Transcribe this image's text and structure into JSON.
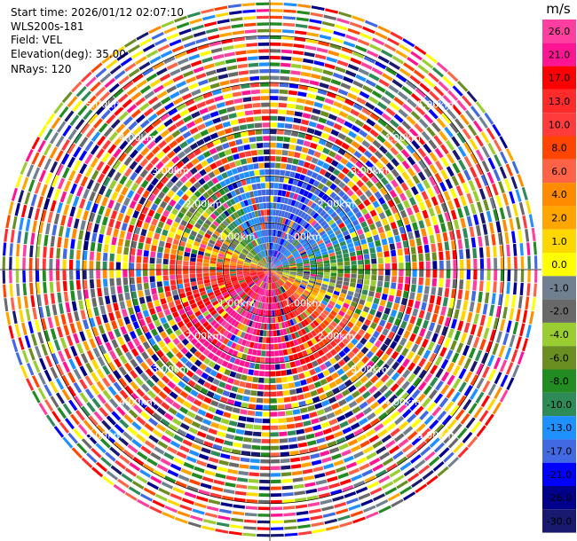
{
  "info": {
    "start_time": "Start time: 2026/01/12 02:07:10",
    "instrument": "WLS200s-181",
    "field": "Field: VEL",
    "elevation": "Elevation(deg): 35.00",
    "nrays": "NRays: 120"
  },
  "chart_data": {
    "type": "heatmap",
    "projection": "polar-ppi",
    "n_rays": 120,
    "range_rings_km": [
      1.0,
      2.0,
      3.0,
      4.0,
      5.0
    ],
    "ring_labels": [
      "1.00km",
      "2.00km",
      "3.00km",
      "4.00km",
      "5.00km"
    ],
    "colorbar": {
      "unit": "m/s",
      "tick_labels": [
        "26.0",
        "21.0",
        "17.0",
        "13.0",
        "10.0",
        "8.0",
        "6.0",
        "4.0",
        "2.0",
        "1.0",
        "0.0",
        "-1.0",
        "-2.0",
        "-4.0",
        "-6.0",
        "-8.0",
        "-10.0",
        "-13.0",
        "-17.0",
        "-21.0",
        "-26.0",
        "-30.0"
      ],
      "colors": [
        "#ff3fa0",
        "#ff1493",
        "#ff0000",
        "#ff2a2a",
        "#ff3b3b",
        "#ff4500",
        "#ff6347",
        "#ff8c00",
        "#ffa500",
        "#ffd700",
        "#ffff00",
        "#708090",
        "#696969",
        "#9acd32",
        "#6b8e23",
        "#228b22",
        "#2e8b57",
        "#1e90ff",
        "#4169e1",
        "#0000ff",
        "#00008b",
        "#191970"
      ]
    }
  }
}
